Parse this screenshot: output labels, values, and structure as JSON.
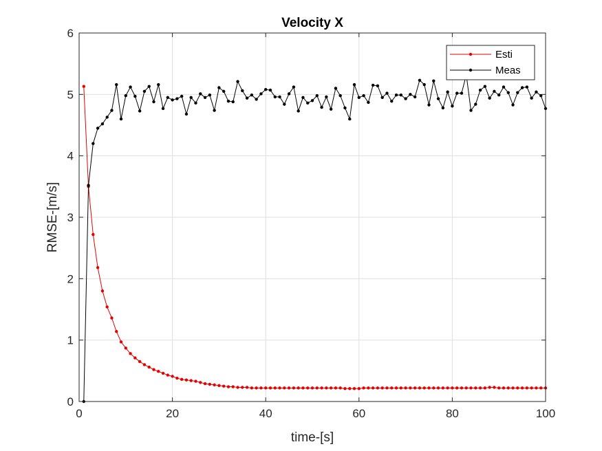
{
  "chart_data": {
    "type": "line",
    "title": "Velocity X",
    "xlabel": "time-[s]",
    "ylabel": "RMSE-[m/s]",
    "xlim": [
      0,
      100
    ],
    "ylim": [
      0,
      6
    ],
    "xticks": [
      0,
      20,
      40,
      60,
      80,
      100
    ],
    "yticks": [
      0,
      1,
      2,
      3,
      4,
      5,
      6
    ],
    "grid": true,
    "legend_position": "top-right",
    "x": [
      1,
      2,
      3,
      4,
      5,
      6,
      7,
      8,
      9,
      10,
      11,
      12,
      13,
      14,
      15,
      16,
      17,
      18,
      19,
      20,
      21,
      22,
      23,
      24,
      25,
      26,
      27,
      28,
      29,
      30,
      31,
      32,
      33,
      34,
      35,
      36,
      37,
      38,
      39,
      40,
      41,
      42,
      43,
      44,
      45,
      46,
      47,
      48,
      49,
      50,
      51,
      52,
      53,
      54,
      55,
      56,
      57,
      58,
      59,
      60,
      61,
      62,
      63,
      64,
      65,
      66,
      67,
      68,
      69,
      70,
      71,
      72,
      73,
      74,
      75,
      76,
      77,
      78,
      79,
      80,
      81,
      82,
      83,
      84,
      85,
      86,
      87,
      88,
      89,
      90,
      91,
      92,
      93,
      94,
      95,
      96,
      97,
      98,
      99,
      100
    ],
    "series": [
      {
        "name": "Esti",
        "color": "#e60000",
        "values": [
          5.13,
          3.5,
          2.72,
          2.18,
          1.8,
          1.54,
          1.36,
          1.14,
          0.97,
          0.87,
          0.78,
          0.71,
          0.65,
          0.6,
          0.56,
          0.52,
          0.49,
          0.46,
          0.43,
          0.41,
          0.38,
          0.36,
          0.35,
          0.34,
          0.33,
          0.31,
          0.29,
          0.28,
          0.27,
          0.26,
          0.25,
          0.24,
          0.24,
          0.23,
          0.23,
          0.23,
          0.22,
          0.22,
          0.22,
          0.22,
          0.22,
          0.22,
          0.22,
          0.22,
          0.22,
          0.22,
          0.22,
          0.22,
          0.22,
          0.22,
          0.22,
          0.22,
          0.22,
          0.22,
          0.22,
          0.22,
          0.21,
          0.21,
          0.21,
          0.21,
          0.22,
          0.22,
          0.22,
          0.22,
          0.22,
          0.22,
          0.22,
          0.22,
          0.22,
          0.22,
          0.22,
          0.22,
          0.22,
          0.22,
          0.22,
          0.22,
          0.22,
          0.22,
          0.22,
          0.22,
          0.22,
          0.22,
          0.22,
          0.22,
          0.22,
          0.22,
          0.22,
          0.23,
          0.23,
          0.22,
          0.22,
          0.22,
          0.22,
          0.22,
          0.22,
          0.22,
          0.22,
          0.22,
          0.22,
          0.22
        ]
      },
      {
        "name": "Meas",
        "color": "#000000",
        "values": [
          0.0,
          3.52,
          4.2,
          4.45,
          4.52,
          4.63,
          4.74,
          5.16,
          4.6,
          4.98,
          5.12,
          4.97,
          4.73,
          5.05,
          5.13,
          4.88,
          5.16,
          4.77,
          4.95,
          4.91,
          4.93,
          4.97,
          4.68,
          4.95,
          4.86,
          5.01,
          4.95,
          4.99,
          4.74,
          5.11,
          5.05,
          4.89,
          4.88,
          5.21,
          5.06,
          4.94,
          4.99,
          4.92,
          5.01,
          5.08,
          5.07,
          4.96,
          4.96,
          4.84,
          5.01,
          5.12,
          4.73,
          4.95,
          4.86,
          4.9,
          4.98,
          4.79,
          4.96,
          4.76,
          5.1,
          4.98,
          4.78,
          4.6,
          5.16,
          4.95,
          4.98,
          4.87,
          5.15,
          5.14,
          4.95,
          5.02,
          4.89,
          4.99,
          4.99,
          4.93,
          5.0,
          4.96,
          5.23,
          5.16,
          4.83,
          5.22,
          4.93,
          4.78,
          5.04,
          4.81,
          5.02,
          5.02,
          5.32,
          4.74,
          4.84,
          5.07,
          5.13,
          4.94,
          5.05,
          4.99,
          5.12,
          5.03,
          4.83,
          5.03,
          5.11,
          5.12,
          4.94,
          5.04,
          4.98,
          4.77
        ]
      }
    ]
  }
}
